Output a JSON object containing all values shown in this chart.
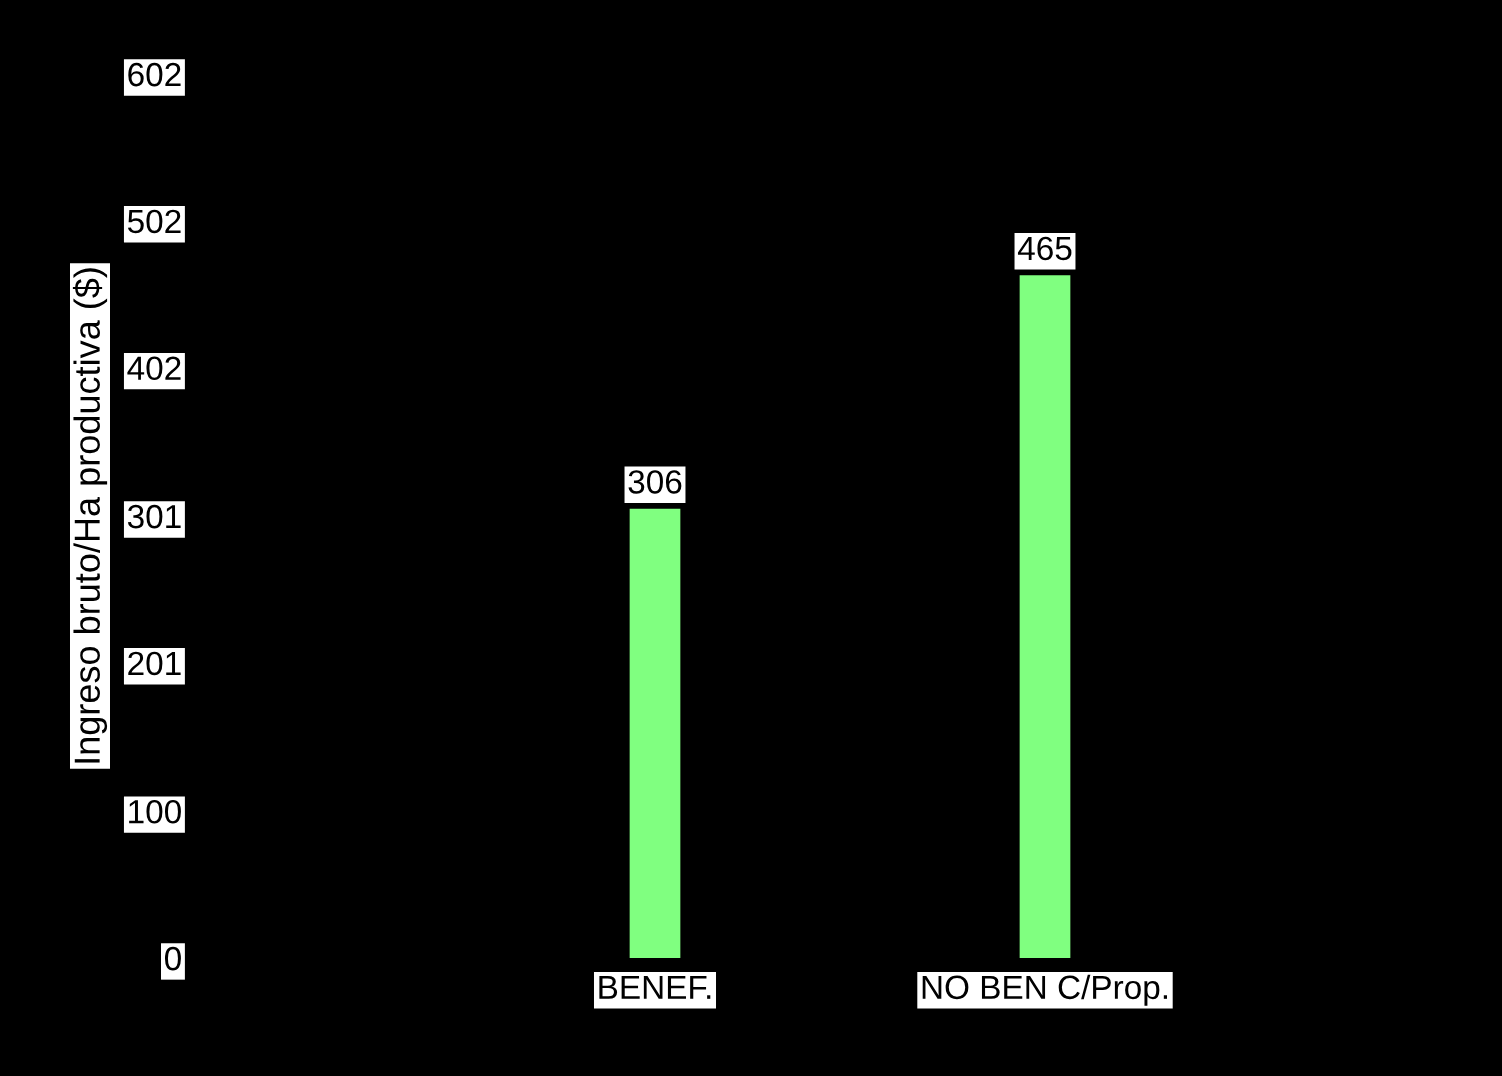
{
  "chart_data": {
    "type": "bar",
    "ylabel": "Ingreso bruto/Ha productiva ($)",
    "categories": [
      "BENEF.",
      "NO BEN C/Prop."
    ],
    "values": [
      306,
      465
    ],
    "color": "#80ff80",
    "ylim": [
      0,
      602
    ],
    "yticks": [
      0,
      100,
      201,
      301,
      402,
      502,
      602
    ],
    "data_labels": true,
    "grid": false
  }
}
